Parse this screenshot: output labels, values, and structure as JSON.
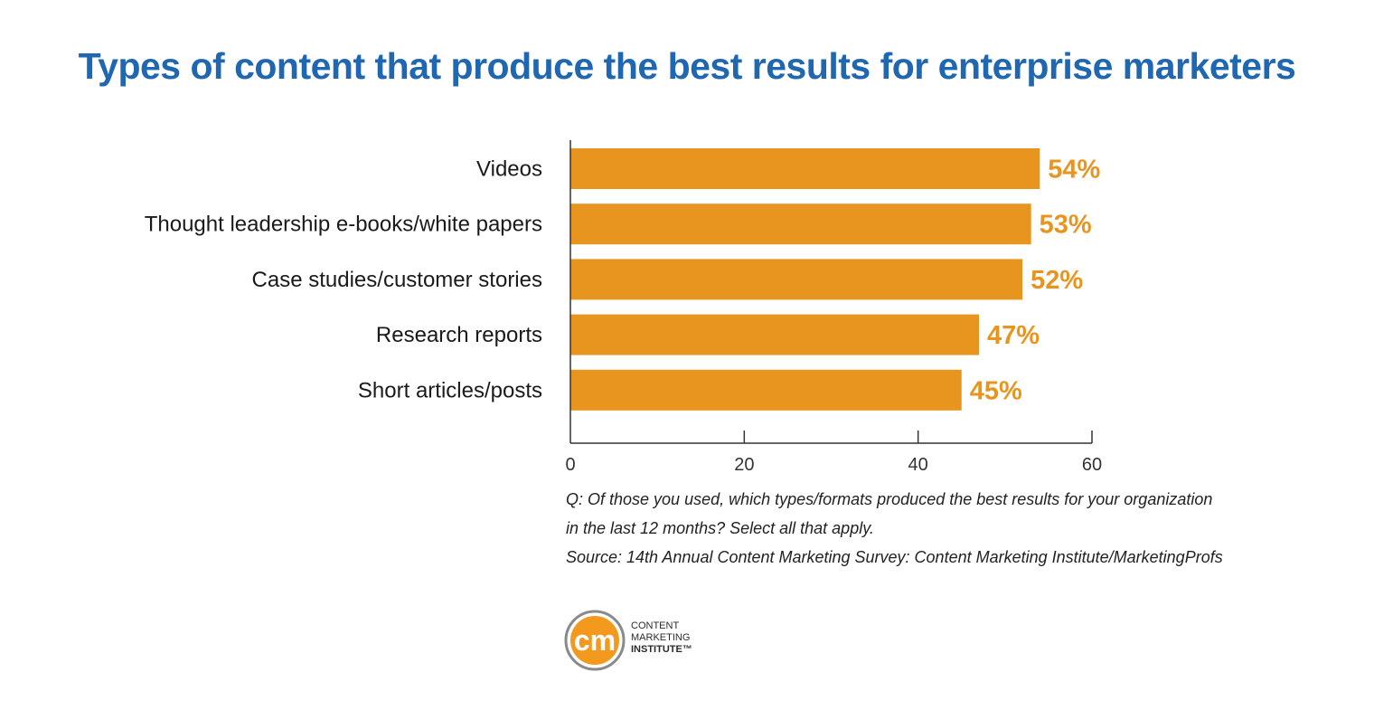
{
  "chart_data": {
    "type": "bar",
    "orientation": "horizontal",
    "title": "Types of content that produce the best results for enterprise marketers",
    "categories": [
      "Videos",
      "Thought leadership e-books/white papers",
      "Case studies/customer stories",
      "Research reports",
      "Short articles/posts"
    ],
    "values": [
      54,
      53,
      52,
      47,
      45
    ],
    "value_labels": [
      "54%",
      "53%",
      "52%",
      "47%",
      "45%"
    ],
    "xlim": [
      0,
      60
    ],
    "xticks": [
      0,
      20,
      40,
      60
    ],
    "grid": false,
    "bar_color": "#e8951f",
    "label_color": "#e8951f"
  },
  "notes": {
    "question_line1": "Q: Of those you used, which types/formats produced the best results for your organization",
    "question_line2": "in the last 12 months? Select all that apply.",
    "source": "Source: 14th Annual Content Marketing Survey: Content Marketing Institute/MarketingProfs"
  },
  "logo": {
    "mark": "cm",
    "line1": "CONTENT",
    "line2": "MARKETING",
    "line3": "INSTITUTE™",
    "circle_color": "#f39a1e",
    "ring_color": "#8a8a8a"
  },
  "colors": {
    "title": "#1f68b1"
  }
}
